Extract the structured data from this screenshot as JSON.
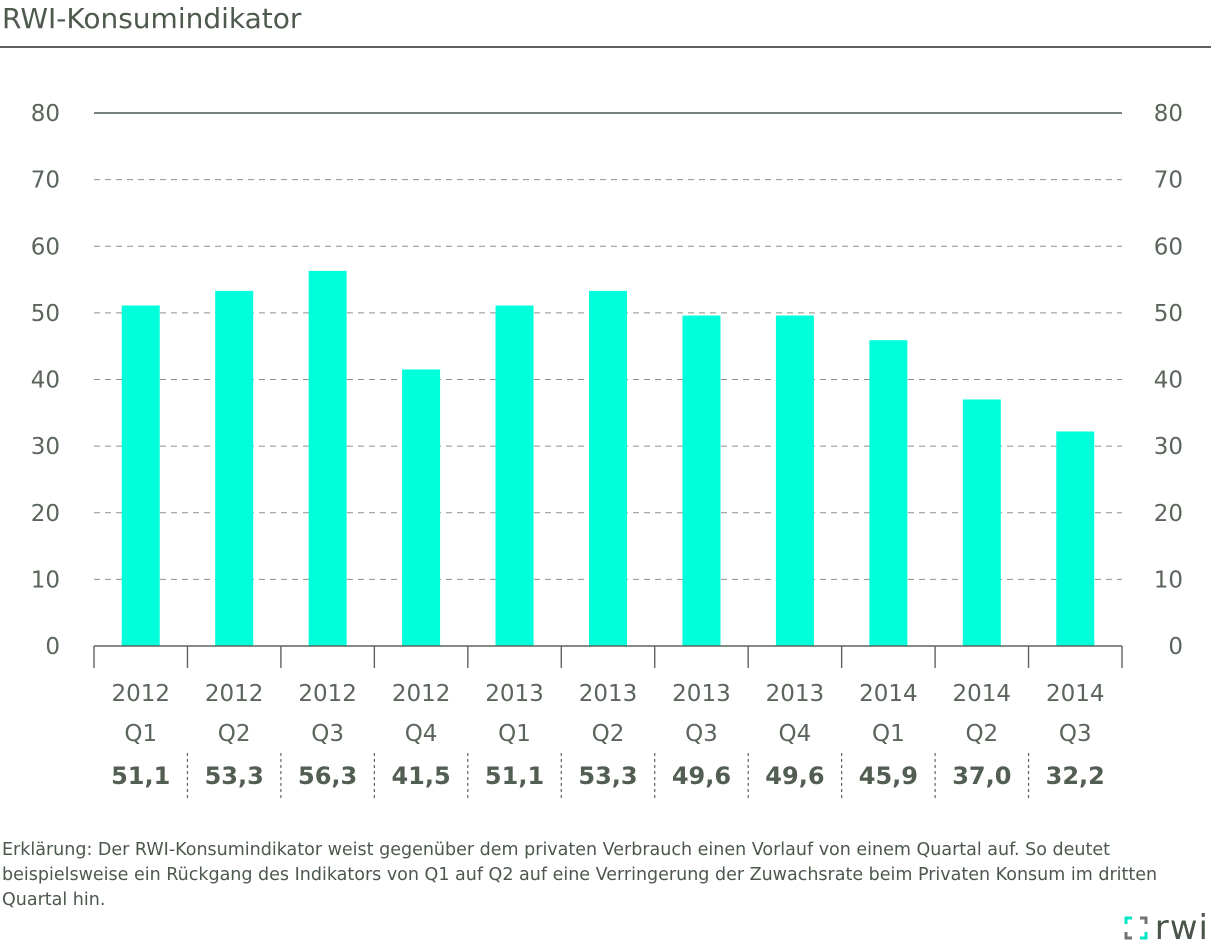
{
  "header": {
    "title": "RWI-Konsumindikator"
  },
  "footnote": {
    "text": "Erklärung: Der RWI-Konsumindikator weist gegenüber dem privaten Verbrauch einen Vorlauf von einem Quartal auf. So deutet beispielsweise ein Rückgang des Indikators von Q1 auf Q2 auf eine Verringerung der Zuwachsrate beim Privaten Konsum im dritten Quartal hin."
  },
  "logo": {
    "text": "rwi"
  },
  "colors": {
    "bar": "#00ffdb",
    "text": "#5b655b",
    "axis": "#5b655b",
    "grid": "#8a928a"
  },
  "chart_data": {
    "type": "bar",
    "title": "RWI-Konsumindikator",
    "categories": [
      [
        "2012",
        "Q1"
      ],
      [
        "2012",
        "Q2"
      ],
      [
        "2012",
        "Q3"
      ],
      [
        "2012",
        "Q4"
      ],
      [
        "2013",
        "Q1"
      ],
      [
        "2013",
        "Q2"
      ],
      [
        "2013",
        "Q3"
      ],
      [
        "2013",
        "Q4"
      ],
      [
        "2014",
        "Q1"
      ],
      [
        "2014",
        "Q2"
      ],
      [
        "2014",
        "Q3"
      ]
    ],
    "values": [
      51.1,
      53.3,
      56.3,
      41.5,
      51.1,
      53.3,
      49.6,
      49.6,
      45.9,
      37.0,
      32.2
    ],
    "value_labels": [
      "51,1",
      "53,3",
      "56,3",
      "41,5",
      "51,1",
      "53,3",
      "49,6",
      "49,6",
      "45,9",
      "37,0",
      "32,2"
    ],
    "ylim": [
      0,
      80
    ],
    "yticks": [
      0,
      10,
      20,
      30,
      40,
      50,
      60,
      70,
      80
    ],
    "y_axis_both_sides": true,
    "grid": "dashed horizontal",
    "xlabel": "",
    "ylabel": ""
  }
}
